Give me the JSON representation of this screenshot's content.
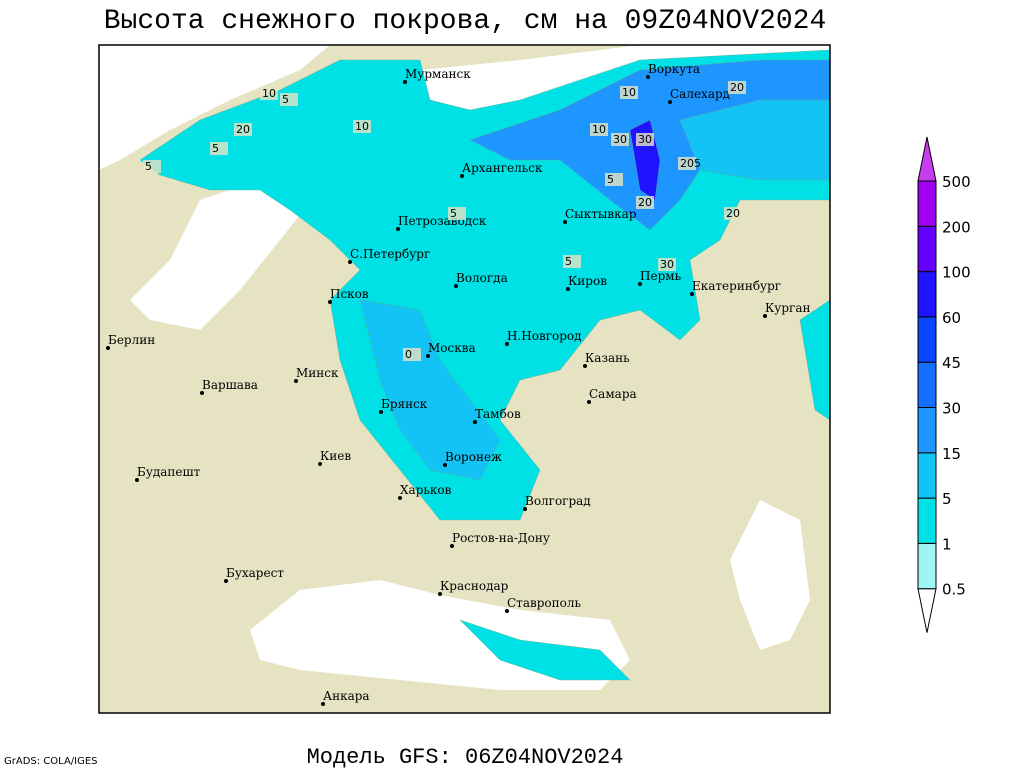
{
  "title": "Высота снежного покрова, см на 09Z04NOV2024",
  "footer": "Модель GFS: 06Z04NOV2024",
  "credit": "GrADS: COLA/IGES",
  "cities": [
    "Мурманск",
    "Воркута",
    "Салехард",
    "Архангельск",
    "Петрозаводск",
    "Сыктывкар",
    "С.Петербург",
    "Вологда",
    "Киров",
    "Пермь",
    "Екатеринбург",
    "Курган",
    "Псков",
    "Москва",
    "Н.Новгород",
    "Казань",
    "Берлин",
    "Минск",
    "Варшава",
    "Брянск",
    "Тамбов",
    "Самара",
    "Киев",
    "Воронеж",
    "Будапешт",
    "Харьков",
    "Волгоград",
    "Ростов-на-Дону",
    "Бухарест",
    "Краснодар",
    "Ставрополь",
    "Анкара"
  ],
  "contour_labels": [
    10,
    5,
    20,
    5,
    5,
    10,
    10,
    30,
    10,
    30,
    20,
    5,
    20,
    205,
    20,
    5,
    30,
    5,
    0
  ],
  "legend": {
    "levels": [
      0.5,
      1,
      5,
      15,
      30,
      45,
      60,
      100,
      200,
      500
    ],
    "colors": [
      "#ffffff",
      "#9ef5f5",
      "#00e1e6",
      "#14c3f5",
      "#1e96ff",
      "#146eff",
      "#0a46ff",
      "#1e14ff",
      "#6400ff",
      "#a000f0",
      "#c83cf0"
    ]
  }
}
